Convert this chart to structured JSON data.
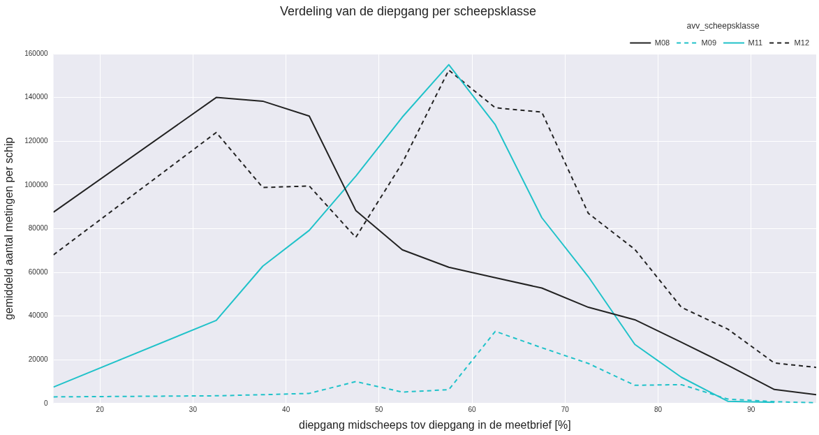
{
  "chart_data": {
    "type": "line",
    "title": "Verdeling van de diepgang per scheepsklasse",
    "xlabel": "diepgang midscheeps tov diepgang in de meetbrief [%]",
    "ylabel": "gemiddeld aantal metingen per schip",
    "legend_title": "avv_scheepsklasse",
    "legend": "top right",
    "grid": true,
    "marker": "none",
    "x": [
      15,
      32.5,
      37.5,
      42.5,
      47.5,
      52.5,
      57.5,
      62.5,
      67.5,
      72.5,
      77.5,
      82.5,
      87.5,
      92.5,
      97
    ],
    "xlim": [
      15,
      97
    ],
    "xticks": [
      20,
      30,
      40,
      50,
      60,
      70,
      80,
      90
    ],
    "ylim": [
      0,
      160000
    ],
    "yticks": [
      0,
      20000,
      40000,
      60000,
      80000,
      100000,
      120000,
      140000,
      160000
    ],
    "series": [
      {
        "name": "M08",
        "color": "#222222",
        "line_style": "solid",
        "values": [
          87500,
          140000,
          138300,
          131500,
          88300,
          70300,
          62300,
          57500,
          52800,
          44000,
          38300,
          28000,
          17500,
          6400,
          4000
        ]
      },
      {
        "name": "M09",
        "color": "#20c2c9",
        "line_style": "dashed",
        "values": [
          3000,
          3500,
          4000,
          4600,
          10000,
          5200,
          6300,
          33000,
          25500,
          18300,
          8300,
          8600,
          2000,
          800,
          300
        ]
      },
      {
        "name": "M11",
        "color": "#20c2c9",
        "line_style": "solid",
        "values": [
          7500,
          38000,
          62800,
          79200,
          104000,
          131000,
          155000,
          127500,
          85000,
          58000,
          27000,
          12000,
          1000,
          500,
          null
        ]
      },
      {
        "name": "M12",
        "color": "#222222",
        "line_style": "dashed",
        "values": [
          68000,
          124000,
          98800,
          99500,
          76000,
          110000,
          152500,
          135300,
          133300,
          87000,
          70500,
          44000,
          34000,
          18500,
          16500
        ]
      }
    ]
  }
}
